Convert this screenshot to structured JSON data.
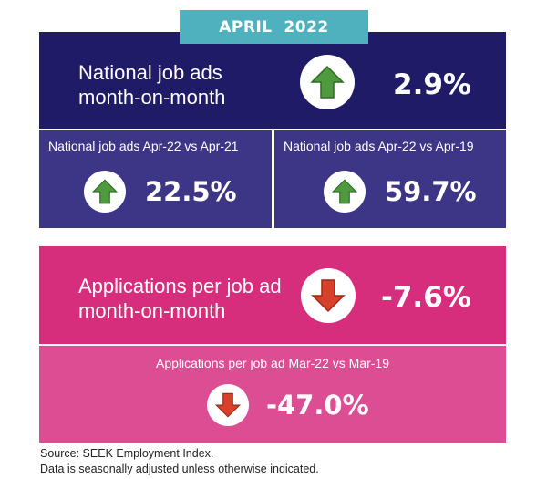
{
  "header": {
    "period": "APRIL  2022"
  },
  "colors": {
    "teal": "#4eb1bd",
    "navy": "#1f1b66",
    "indigo": "#3d3585",
    "magenta": "#d62e7c",
    "pink": "#dc4d94",
    "up_arrow": "#4f9a3f",
    "down_arrow": "#d7402a"
  },
  "job_ads": {
    "mom_label_line1": "National job ads",
    "mom_label_line2": "month-on-month",
    "mom_value": "2.9%",
    "mom_direction": "up",
    "yoy_label": "National job ads Apr-22 vs Apr-21",
    "yoy_value": "22.5%",
    "yoy_direction": "up",
    "vs2019_label": "National job ads Apr-22 vs Apr-19",
    "vs2019_value": "59.7%",
    "vs2019_direction": "up",
    "icon": "green-up-arrow-icon"
  },
  "applications": {
    "mom_label_line1": "Applications per job ad",
    "mom_label_line2": "month-on-month",
    "mom_value": "-7.6%",
    "mom_direction": "down",
    "vs2019_label": "Applications per job ad Mar-22 vs Mar-19",
    "vs2019_value": "-47.0%",
    "vs2019_direction": "down",
    "icon": "red-down-arrow-icon"
  },
  "footer": {
    "source": "Source: SEEK Employment Index.",
    "note": "Data is seasonally adjusted unless otherwise indicated."
  }
}
